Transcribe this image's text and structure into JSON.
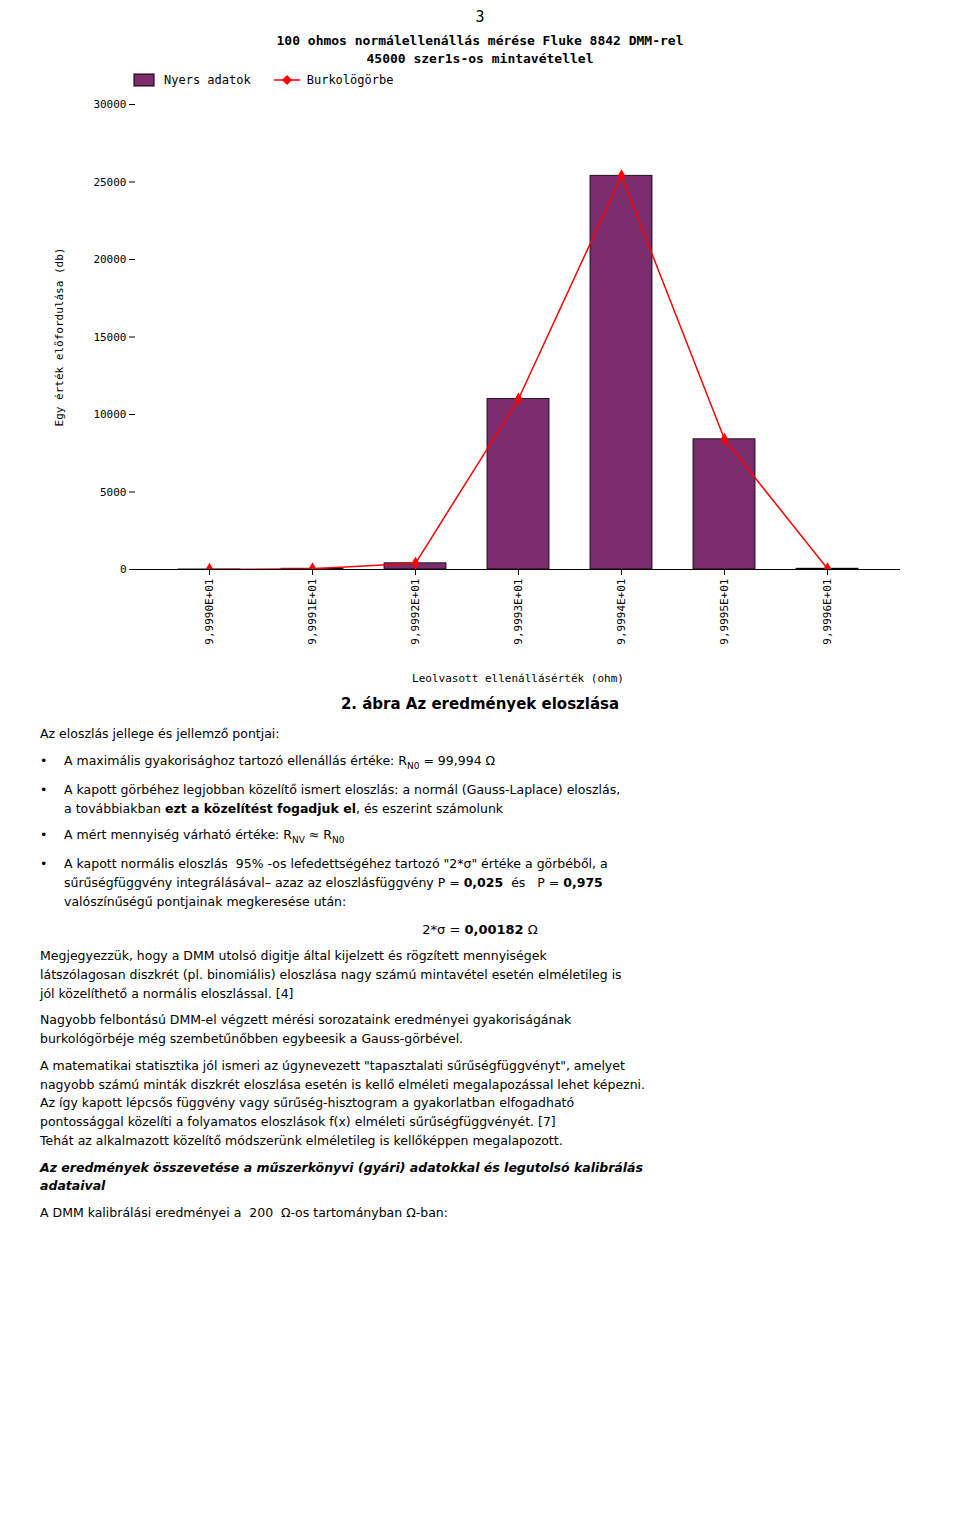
{
  "page_number": "3",
  "chart_data": {
    "type": "bar",
    "title": "100 ohmos normálellenállás mérése Fluke 8842 DMM-rel",
    "subtitle": "45000 szer1s-os mintavétellel",
    "xlabel": "Leolvasott ellenállásérték (ohm)",
    "ylabel": "Egy érték előfordulása (db)",
    "categories": [
      "9,9990E+01",
      "9,9991E+01",
      "9,9992E+01",
      "9,9993E+01",
      "9,9994E+01",
      "9,9995E+01",
      "9,9996E+01"
    ],
    "series": [
      {
        "name": "Nyers adatok",
        "type": "bar",
        "color": "#7B2D6E",
        "values": [
          2,
          50,
          400,
          11000,
          25400,
          8400,
          50
        ]
      },
      {
        "name": "Burkolögörbe",
        "type": "line",
        "color": "#FF0000",
        "marker": "diamond",
        "values": [
          2,
          50,
          400,
          11000,
          25400,
          8400,
          50
        ]
      }
    ],
    "ylim": [
      0,
      30000
    ],
    "yticks": [
      0,
      5000,
      10000,
      15000,
      20000,
      25000,
      30000
    ],
    "legend": "upper left"
  },
  "caption": "2. ábra  Az eredmények eloszlása",
  "body": [
    {
      "lines": [
        [
          "Az eloszlás jellege és jellemző pontjai:"
        ]
      ]
    },
    {
      "bullet": "•",
      "lines": [
        [
          "A maximális gyakorisághoz tartozó ellenállás értéke: R",
          {
            "text": "N0",
            "sub": true
          },
          " = 99,994 Ω"
        ]
      ]
    },
    {
      "bullet": "•",
      "lines": [
        [
          "A kapott görbéhez legjobban közelítő ismert eloszlás: a normál (Gauss-Laplace) eloszlás,"
        ],
        [
          "a továbbiakban ",
          {
            "text": "ezt a közelítést fogadjuk el",
            "bold": true
          },
          ", és eszerint számolunk"
        ]
      ]
    },
    {
      "bullet": "•",
      "lines": [
        [
          "A mért mennyiség várható értéke: R",
          {
            "text": "NV",
            "sub": true
          },
          " ≈ R",
          {
            "text": "N0",
            "sub": true
          }
        ]
      ]
    },
    {
      "bullet": "•",
      "lines": [
        [
          "A kapott normális eloszlás  95% -os lefedettségéhez tartozó \"2*σ\" értéke a görbéből, a"
        ],
        [
          "sűrűségfüggvény integrálásával– azaz az eloszlásfüggvény P = ",
          {
            "text": "0,025",
            "bold": true
          },
          "  és   P = ",
          {
            "text": "0,975",
            "bold": true
          }
        ],
        [
          "valószínűségű pontjainak megkeresése után:"
        ]
      ]
    },
    {
      "formula": [
        "2*σ = ",
        {
          "text": "0,00182",
          "bold": true
        },
        " Ω"
      ]
    },
    {
      "lines": [
        [
          "Megjegyezzük, hogy a DMM utolsó digitje által kijelzett és rögzített mennyiségek"
        ],
        [
          "látszólagosan diszkrét (pl. binomiális) eloszlása nagy számú mintavétel esetén elméletileg is"
        ],
        [
          "jól közelíthető a normális eloszlással. [4]"
        ]
      ]
    },
    {
      "lines": [
        [
          "Nagyobb felbontású DMM-el végzett mérési sorozataink eredményei gyakoriságának"
        ],
        [
          "burkológörbéje még szembetűnőbben egybeesik a Gauss-görbével."
        ]
      ]
    },
    {
      "lines": [
        [
          "A matematikai statisztika jól ismeri az úgynevezett \"tapasztalati sűrűségfüggvényt\", amelyet"
        ],
        [
          "nagyobb számú minták diszkrét eloszlása esetén is kellő elméleti megalapozással lehet képezni."
        ],
        [
          "Az így kapott lépcsős függvény vagy sűrűség-hisztogram a gyakorlatban elfogadható"
        ],
        [
          "pontossággal közelíti a folyamatos eloszlások f(x) elméleti sűrűségfüggvényét. [7]"
        ],
        [
          "Tehát az alkalmazott közelítő módszerünk elméletileg is kellőképpen megalapozott."
        ]
      ]
    },
    {
      "lines": [
        [
          {
            "text": "Az eredmények összevetése a műszerkönyvi (gyári) adatokkal és legutolsó kalibrálás",
            "bold": true,
            "italic": true
          }
        ],
        [
          {
            "text": "adataival",
            "bold": true,
            "italic": true
          }
        ]
      ]
    },
    {
      "lines": [
        [
          "A DMM kalibrálási eredményei a  200  Ω-os tartományban Ω-ban:"
        ]
      ]
    }
  ]
}
